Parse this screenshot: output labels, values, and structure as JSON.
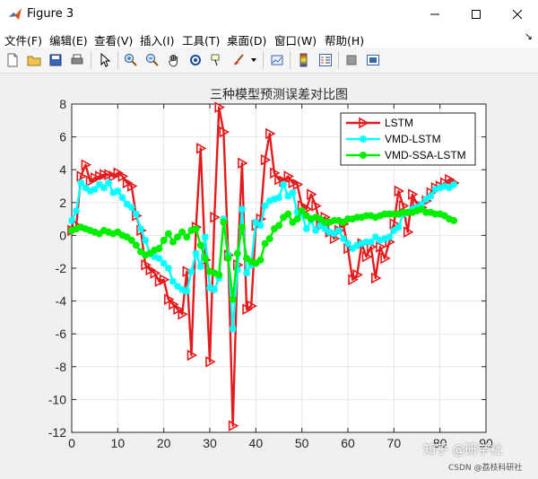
{
  "window": {
    "title": "Figure 3"
  },
  "menu": [
    "文件(F)",
    "编辑(E)",
    "查看(V)",
    "插入(I)",
    "工具(T)",
    "桌面(D)",
    "窗口(W)",
    "帮助(H)"
  ],
  "toolbar_icons": [
    "new-figure-icon",
    "open-file-icon",
    "save-icon",
    "print-icon",
    "select-arrow-icon",
    "zoom-in-icon",
    "zoom-out-icon",
    "pan-hand-icon",
    "rotate-3d-icon",
    "data-cursor-icon",
    "brush-icon",
    "brush-dropdown-icon",
    "link-plot-icon",
    "colorbar-icon",
    "legend-icon",
    "hide-plot-tools-icon",
    "show-plot-tools-icon"
  ],
  "watermark": {
    "line1": "知乎 @研学社",
    "line2": "CSDN @荔枝科研社"
  },
  "chart_data": {
    "type": "line",
    "title": "三种模型预测误差对比图",
    "xlabel": "",
    "ylabel": "",
    "xlim": [
      0,
      90
    ],
    "ylim": [
      -12,
      8
    ],
    "xticks": [
      0,
      10,
      20,
      30,
      40,
      50,
      60,
      70,
      80,
      90
    ],
    "yticks": [
      -12,
      -10,
      -8,
      -6,
      -4,
      -2,
      0,
      2,
      4,
      6,
      8
    ],
    "grid": true,
    "legend": "top-right",
    "x": [
      0,
      1,
      2,
      3,
      4,
      5,
      6,
      7,
      8,
      9,
      10,
      11,
      12,
      13,
      14,
      15,
      16,
      17,
      18,
      19,
      20,
      21,
      22,
      23,
      24,
      25,
      26,
      27,
      28,
      29,
      30,
      31,
      32,
      33,
      34,
      35,
      36,
      37,
      38,
      39,
      40,
      41,
      42,
      43,
      44,
      45,
      46,
      47,
      48,
      49,
      50,
      51,
      52,
      53,
      54,
      55,
      56,
      57,
      58,
      59,
      60,
      61,
      62,
      63,
      64,
      65,
      66,
      67,
      68,
      69,
      70,
      71,
      72,
      73,
      74,
      75,
      76,
      77,
      78,
      79,
      80,
      81,
      82,
      83
    ],
    "series": [
      {
        "name": "LSTM",
        "color": "#e41a1c",
        "marker": "triangle-right",
        "values": [
          0.3,
          0.6,
          3.6,
          4.3,
          3.3,
          3.5,
          3.6,
          3.7,
          3.7,
          3.6,
          3.8,
          3.6,
          3.2,
          3.0,
          1.2,
          0.3,
          -1.8,
          -2.1,
          -2.3,
          -2.8,
          -2.7,
          -3.9,
          -4.2,
          -4.5,
          -4.8,
          -2.2,
          -7.3,
          0.5,
          5.3,
          -1.5,
          -7.7,
          1.1,
          7.8,
          6.3,
          -1.2,
          -11.6,
          -1.8,
          4.4,
          -4.5,
          -4.3,
          0.6,
          1.0,
          4.6,
          6.2,
          3.8,
          3.4,
          3.3,
          3.6,
          3.2,
          3.1,
          1.8,
          1.6,
          2.5,
          1.8,
          0.6,
          1.1,
          0.2,
          -0.2,
          0.3,
          0.7,
          -0.8,
          -2.7,
          -2.4,
          -0.5,
          -1.3,
          -0.7,
          -2.6,
          -0.7,
          -1.4,
          -0.4,
          0.7,
          2.7,
          1.8,
          0.2,
          2.5,
          1.9,
          1.7,
          2.1,
          2.6,
          2.9,
          3.0,
          3.2,
          3.4,
          3.2
        ]
      },
      {
        "name": "VMD-LSTM",
        "color": "#00ffff",
        "marker": "star",
        "values": [
          0.9,
          1.5,
          3.2,
          2.9,
          2.7,
          2.8,
          3.1,
          2.9,
          3.2,
          2.6,
          2.7,
          2.3,
          1.9,
          1.7,
          1.3,
          0.4,
          -0.3,
          -1.1,
          -1.3,
          -1.4,
          -1.7,
          -2.0,
          -2.8,
          -3.1,
          -3.3,
          -3.4,
          -2.2,
          -1.1,
          -1.9,
          -0.1,
          -3.2,
          -3.3,
          -2.6,
          1.0,
          -1.2,
          -5.7,
          -2.1,
          1.6,
          -2.3,
          -1.8,
          0.8,
          0.6,
          1.8,
          2.1,
          2.2,
          2.3,
          3.1,
          2.4,
          2.6,
          1.4,
          1.3,
          0.4,
          0.9,
          0.3,
          0.6,
          0.4,
          0.2,
          0.1,
          0.3,
          -0.2,
          -0.5,
          -0.8,
          -0.6,
          -0.5,
          -0.4,
          -0.4,
          -0.1,
          -0.3,
          -0.2,
          -0.1,
          0.3,
          0.5,
          1.3,
          1.4,
          1.6,
          1.7,
          1.9,
          2.2,
          2.4,
          2.8,
          2.9,
          3.0,
          2.9,
          3.1
        ]
      },
      {
        "name": "VMD-SSA-LSTM",
        "color": "#00ee00",
        "marker": "circle",
        "values": [
          0.3,
          0.4,
          0.5,
          0.4,
          0.3,
          0.2,
          0.1,
          0.3,
          0.2,
          0.1,
          0.2,
          0.0,
          -0.1,
          -0.3,
          -0.6,
          -1.0,
          -1.2,
          -1.1,
          -0.9,
          -0.8,
          -0.3,
          0.1,
          -0.4,
          -0.1,
          0.2,
          -0.1,
          0.3,
          0.4,
          -0.6,
          -1.4,
          -2.2,
          -2.3,
          -2.4,
          0.8,
          -1.4,
          -3.9,
          -1.1,
          0.5,
          -1.4,
          -1.6,
          -1.7,
          -1.5,
          -0.5,
          -0.2,
          0.4,
          0.6,
          1.1,
          1.3,
          0.8,
          1.0,
          1.5,
          1.2,
          1.0,
          1.1,
          1.0,
          0.8,
          0.8,
          0.9,
          0.9,
          0.8,
          1.0,
          1.0,
          1.1,
          1.1,
          1.2,
          1.2,
          1.1,
          1.2,
          1.3,
          1.3,
          1.3,
          1.3,
          1.4,
          1.4,
          1.4,
          1.5,
          1.6,
          1.4,
          1.4,
          1.3,
          1.3,
          1.2,
          1.0,
          0.9
        ]
      }
    ]
  }
}
